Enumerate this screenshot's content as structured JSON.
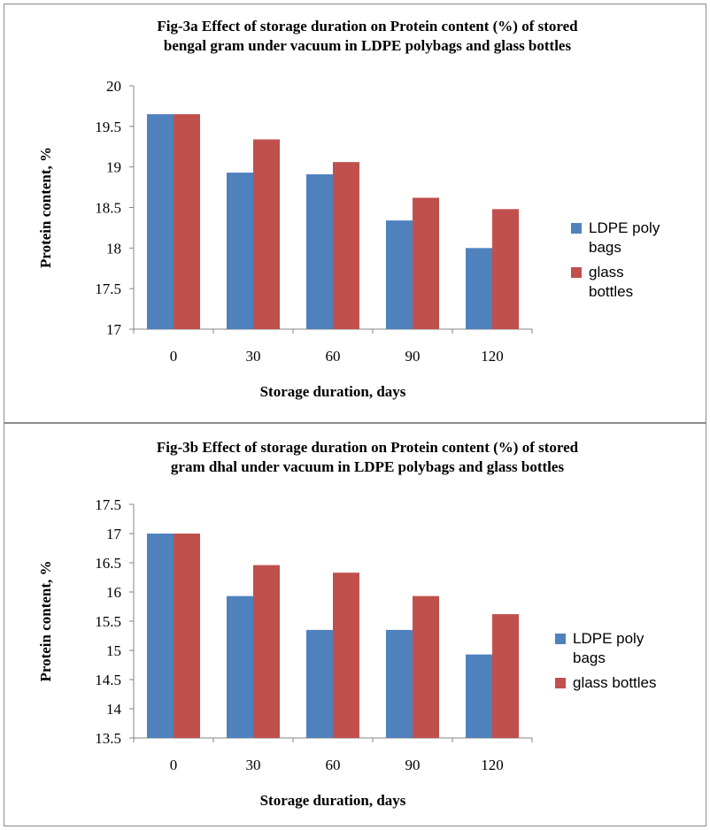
{
  "colors": {
    "ldpe": "#4f81bd",
    "glass": "#c0504d",
    "axis": "#868686"
  },
  "chart_data": [
    {
      "type": "bar",
      "title_line1": "Fig-3a Effect of storage duration on Protein content (%) of stored",
      "title_line2": "bengal gram under vacuum in LDPE polybags and glass bottles",
      "xlabel": "Storage duration, days",
      "ylabel": "Protein content, %",
      "categories": [
        "0",
        "30",
        "60",
        "90",
        "120"
      ],
      "ylim": [
        17,
        20
      ],
      "yticks": [
        "17",
        "17.5",
        "18",
        "18.5",
        "19",
        "19.5",
        "20"
      ],
      "grid": false,
      "legend_position": "right",
      "series": [
        {
          "name": "LDPE poly bags",
          "values": [
            19.65,
            18.93,
            18.91,
            18.34,
            18.0
          ]
        },
        {
          "name": "glass bottles",
          "values": [
            19.65,
            19.34,
            19.06,
            18.62,
            18.48
          ]
        }
      ]
    },
    {
      "type": "bar",
      "title_line1": "Fig-3b Effect of storage duration on Protein content (%) of stored",
      "title_line2": "gram dhal under vacuum in LDPE polybags and glass bottles",
      "xlabel": "Storage duration, days",
      "ylabel": "Protein content, %",
      "categories": [
        "0",
        "30",
        "60",
        "90",
        "120"
      ],
      "ylim": [
        13.5,
        17.5
      ],
      "yticks": [
        "13.5",
        "14",
        "14.5",
        "15",
        "15.5",
        "16",
        "16.5",
        "17",
        "17.5"
      ],
      "grid": false,
      "legend_position": "right",
      "series": [
        {
          "name": "LDPE poly bags",
          "values": [
            17.0,
            15.93,
            15.35,
            15.35,
            14.93
          ]
        },
        {
          "name": "glass bottles",
          "values": [
            17.0,
            16.46,
            16.33,
            15.93,
            15.62
          ]
        }
      ]
    }
  ]
}
